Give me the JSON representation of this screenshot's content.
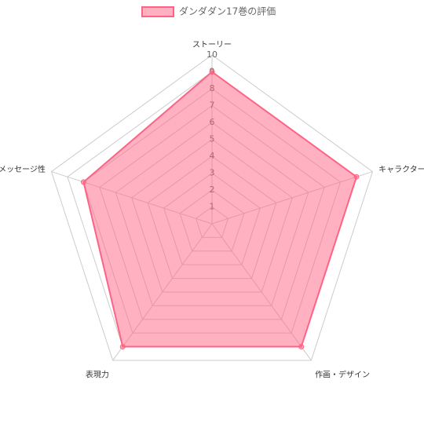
{
  "chart_data": {
    "type": "radar",
    "categories": [
      "ストーリー",
      "キャラクター",
      "作画・デザイン",
      "表現力",
      "メッセージ性"
    ],
    "series": [
      {
        "name": "ダンダダン17巻の評価",
        "color": "#ff6384",
        "values": [
          9,
          9,
          9,
          9,
          8
        ]
      }
    ],
    "ylim": [
      0,
      10
    ],
    "yticks": [
      1,
      2,
      3,
      4,
      5,
      6,
      7,
      8,
      9,
      10
    ],
    "grid": true,
    "legend": "top"
  }
}
